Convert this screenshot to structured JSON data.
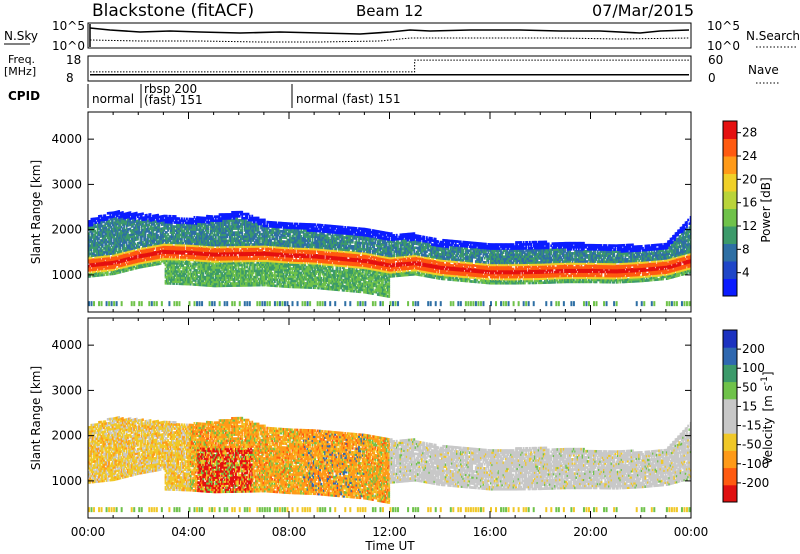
{
  "header": {
    "station": "Blackstone (fitACF)",
    "beam": "Beam 12",
    "date": "07/Mar/2015"
  },
  "noise_panel": {
    "left_label": "N.Sky",
    "right_label": "N.Search",
    "left_ticks": [
      "10^5",
      "10^0"
    ],
    "right_ticks": [
      "10^5",
      "10^0"
    ]
  },
  "freq_panel": {
    "left_label_1": "Freq.",
    "left_label_2": "[MHz]",
    "right_label": "Nave",
    "left_ticks": [
      "18",
      "8"
    ],
    "right_ticks": [
      "60",
      "0"
    ],
    "freq_value_mhz": 10.5,
    "nave_step_time_h": 13.0,
    "nave_before": 22,
    "nave_after": 50
  },
  "cpid": {
    "label": "CPID",
    "segments": [
      {
        "start_h": 0.0,
        "label": "normal"
      },
      {
        "start_h": 2.05,
        "label_1": "rbsp 200",
        "label_2": "(fast) 151"
      },
      {
        "start_h": 8.0,
        "label": "normal (fast)  151"
      }
    ]
  },
  "power_panel": {
    "ylabel": "Slant Range [km]",
    "colorbar_label": "Power [dB]",
    "colorbar_ticks": [
      "28",
      "24",
      "20",
      "16",
      "12",
      "8",
      "4"
    ]
  },
  "velocity_panel": {
    "ylabel": "Slant Range [km]",
    "colorbar_label_1": "Velocity",
    "colorbar_label_2": "[m s",
    "colorbar_label_exp": "-1",
    "colorbar_label_3": "]",
    "colorbar_ticks": [
      "200",
      "100",
      "50",
      "15",
      "-15",
      "-50",
      "-100",
      "-200"
    ]
  },
  "x_axis": {
    "label": "Time UT",
    "ticks": [
      "00:00",
      "04:00",
      "08:00",
      "12:00",
      "16:00",
      "20:00",
      "00:00"
    ]
  },
  "chart_data": [
    {
      "type": "heatmap",
      "title": "",
      "xlabel": "Time UT",
      "ylabel": "Slant Range [km]",
      "xlim_hours": [
        0,
        24
      ],
      "ylim_km": [
        180,
        4600
      ],
      "yticks_km": [
        1000,
        2000,
        3000,
        4000
      ],
      "colorbar": {
        "label": "Power [dB]",
        "range": [
          0,
          30
        ],
        "ticks": [
          4,
          8,
          12,
          16,
          20,
          24,
          28
        ]
      },
      "backscatter_bands_km": [
        {
          "name": "main echo (peak power)",
          "points": [
            [
              0,
              1200
            ],
            [
              1,
              1260
            ],
            [
              2,
              1400
            ],
            [
              3,
              1500
            ],
            [
              4,
              1480
            ],
            [
              5,
              1440
            ],
            [
              6,
              1450
            ],
            [
              7,
              1460
            ],
            [
              8,
              1420
            ],
            [
              9,
              1400
            ],
            [
              10,
              1350
            ],
            [
              11,
              1300
            ],
            [
              12,
              1200
            ],
            [
              13,
              1250
            ],
            [
              14,
              1150
            ],
            [
              15,
              1100
            ],
            [
              16,
              1050
            ],
            [
              17,
              1050
            ],
            [
              18,
              1060
            ],
            [
              19,
              1080
            ],
            [
              20,
              1080
            ],
            [
              21,
              1070
            ],
            [
              22,
              1100
            ],
            [
              23,
              1150
            ],
            [
              24,
              1300
            ]
          ]
        },
        {
          "name": "outer edge of scatter",
          "points": [
            [
              0,
              2200
            ],
            [
              1,
              2400
            ],
            [
              2,
              2350
            ],
            [
              3,
              2300
            ],
            [
              4,
              2250
            ],
            [
              5,
              2300
            ],
            [
              6,
              2400
            ],
            [
              7,
              2200
            ],
            [
              8,
              2150
            ],
            [
              9,
              2100
            ],
            [
              10,
              2050
            ],
            [
              11,
              2000
            ],
            [
              12,
              1900
            ],
            [
              13,
              1900
            ],
            [
              14,
              1750
            ],
            [
              15,
              1750
            ],
            [
              16,
              1700
            ],
            [
              17,
              1700
            ],
            [
              18,
              1720
            ],
            [
              19,
              1700
            ],
            [
              20,
              1680
            ],
            [
              21,
              1650
            ],
            [
              22,
              1650
            ],
            [
              23,
              1700
            ],
            [
              24,
              2300
            ]
          ]
        }
      ]
    },
    {
      "type": "heatmap",
      "title": "",
      "xlabel": "Time UT",
      "ylabel": "Slant Range [km]",
      "xlim_hours": [
        0,
        24
      ],
      "ylim_km": [
        180,
        4600
      ],
      "yticks_km": [
        1000,
        2000,
        3000,
        4000
      ],
      "colorbar": {
        "label": "Velocity [m s^-1]",
        "range": [
          -250,
          250
        ],
        "ticks": [
          200,
          100,
          50,
          15,
          -15,
          -50,
          -100,
          -200
        ]
      }
    }
  ]
}
